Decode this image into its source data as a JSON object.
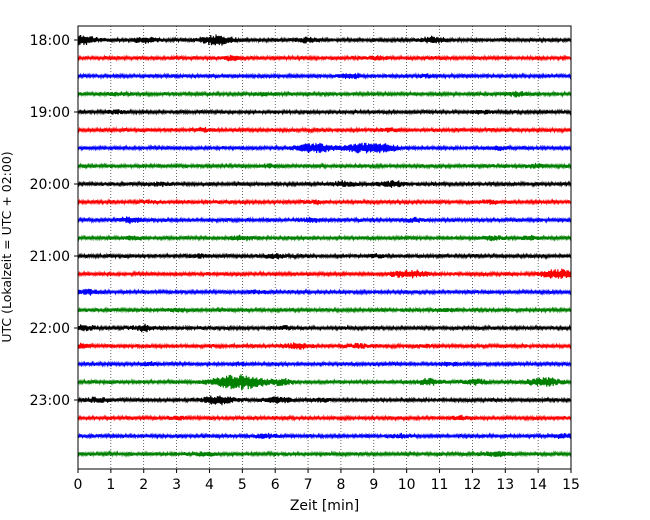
{
  "chart_data": {
    "type": "line",
    "chart_kind": "helicorder seismogram",
    "title": "",
    "xlabel": "Zeit  [min]",
    "ylabel": "UTC (Lokalzeit = UTC + 02:00)",
    "xlim": [
      0,
      15
    ],
    "x_ticks": [
      "0",
      "1",
      "2",
      "3",
      "4",
      "5",
      "6",
      "7",
      "8",
      "9",
      "10",
      "11",
      "12",
      "13",
      "14",
      "15"
    ],
    "y_ticks": [
      {
        "label": "18:00",
        "row": 0
      },
      {
        "label": "19:00",
        "row": 4
      },
      {
        "label": "20:00",
        "row": 8
      },
      {
        "label": "21:00",
        "row": 12
      },
      {
        "label": "22:00",
        "row": 16
      },
      {
        "label": "23:00",
        "row": 20
      }
    ],
    "minutes_per_row": 15,
    "vertical_grid": "dotted at every minute",
    "colors": [
      "#000000",
      "#ff0000",
      "#0000ff",
      "#008000"
    ],
    "rows": [
      {
        "start": "18:00",
        "bursts": [
          [
            0.1,
            0.9
          ],
          [
            4.2,
            1.0
          ],
          [
            2.0,
            0.5
          ],
          [
            7.0,
            0.5
          ],
          [
            10.8,
            0.6
          ]
        ]
      },
      {
        "start": "18:15",
        "bursts": [
          [
            4.7,
            0.4
          ],
          [
            9.1,
            0.3
          ]
        ]
      },
      {
        "start": "18:30",
        "bursts": [
          [
            8.3,
            0.5
          ],
          [
            10.7,
            0.3
          ]
        ]
      },
      {
        "start": "18:45",
        "bursts": [
          [
            5.7,
            0.3
          ],
          [
            13.4,
            0.4
          ],
          [
            1.2,
            0.3
          ]
        ]
      },
      {
        "start": "19:00",
        "bursts": [
          [
            1.1,
            0.3
          ],
          [
            12.3,
            0.3
          ]
        ]
      },
      {
        "start": "19:15",
        "bursts": [
          [
            3.8,
            0.3
          ],
          [
            9.5,
            0.3
          ]
        ]
      },
      {
        "start": "19:30",
        "bursts": [
          [
            7.2,
            1.0
          ],
          [
            8.6,
            0.9
          ],
          [
            9.3,
            0.8
          ],
          [
            12.8,
            0.3
          ]
        ]
      },
      {
        "start": "19:45",
        "bursts": [
          [
            13.9,
            0.4
          ],
          [
            5.8,
            0.3
          ]
        ]
      },
      {
        "start": "20:00",
        "bursts": [
          [
            8.1,
            0.5
          ],
          [
            9.5,
            0.6
          ],
          [
            2.5,
            0.3
          ]
        ]
      },
      {
        "start": "20:15",
        "bursts": [
          [
            2.2,
            0.3
          ],
          [
            7.2,
            0.3
          ],
          [
            12.5,
            0.3
          ]
        ]
      },
      {
        "start": "20:30",
        "bursts": [
          [
            1.6,
            0.5
          ],
          [
            7.1,
            0.4
          ],
          [
            10.3,
            0.4
          ]
        ]
      },
      {
        "start": "20:45",
        "bursts": [
          [
            1.7,
            0.3
          ],
          [
            5.0,
            0.5
          ],
          [
            12.6,
            0.4
          ],
          [
            13.7,
            0.3
          ]
        ]
      },
      {
        "start": "21:00",
        "bursts": [
          [
            3.7,
            0.3
          ],
          [
            6.0,
            0.4
          ],
          [
            9.1,
            0.3
          ]
        ]
      },
      {
        "start": "21:15",
        "bursts": [
          [
            10.2,
            0.7
          ],
          [
            9.7,
            0.4
          ],
          [
            14.6,
            0.9
          ]
        ]
      },
      {
        "start": "21:30",
        "bursts": [
          [
            0.3,
            0.5
          ],
          [
            5.5,
            0.3
          ]
        ]
      },
      {
        "start": "21:45",
        "bursts": [
          [
            3.0,
            0.3
          ],
          [
            11.2,
            0.3
          ]
        ]
      },
      {
        "start": "22:00",
        "bursts": [
          [
            0.2,
            0.5
          ],
          [
            2.0,
            0.6
          ],
          [
            6.3,
            0.3
          ]
        ]
      },
      {
        "start": "22:15",
        "bursts": [
          [
            0.1,
            0.4
          ],
          [
            6.7,
            0.6
          ],
          [
            8.6,
            0.4
          ],
          [
            10.5,
            0.3
          ]
        ]
      },
      {
        "start": "22:30",
        "bursts": [
          [
            2.1,
            0.3
          ],
          [
            4.9,
            0.3
          ],
          [
            11.3,
            0.3
          ]
        ]
      },
      {
        "start": "22:45",
        "bursts": [
          [
            4.9,
            1.6
          ],
          [
            6.2,
            0.5
          ],
          [
            10.7,
            0.6
          ],
          [
            12.1,
            0.5
          ],
          [
            14.2,
            0.9
          ]
        ]
      },
      {
        "start": "23:00",
        "bursts": [
          [
            0.6,
            0.5
          ],
          [
            4.3,
            0.9
          ],
          [
            6.1,
            0.6
          ],
          [
            7.4,
            0.3
          ]
        ]
      },
      {
        "start": "23:15",
        "bursts": [
          [
            3.0,
            0.3
          ],
          [
            11.7,
            0.3
          ]
        ]
      },
      {
        "start": "23:30",
        "bursts": [
          [
            5.7,
            0.4
          ],
          [
            9.8,
            0.3
          ],
          [
            14.8,
            0.4
          ]
        ]
      },
      {
        "start": "23:45",
        "bursts": [
          [
            12.7,
            0.5
          ],
          [
            3.9,
            0.3
          ]
        ]
      }
    ]
  }
}
